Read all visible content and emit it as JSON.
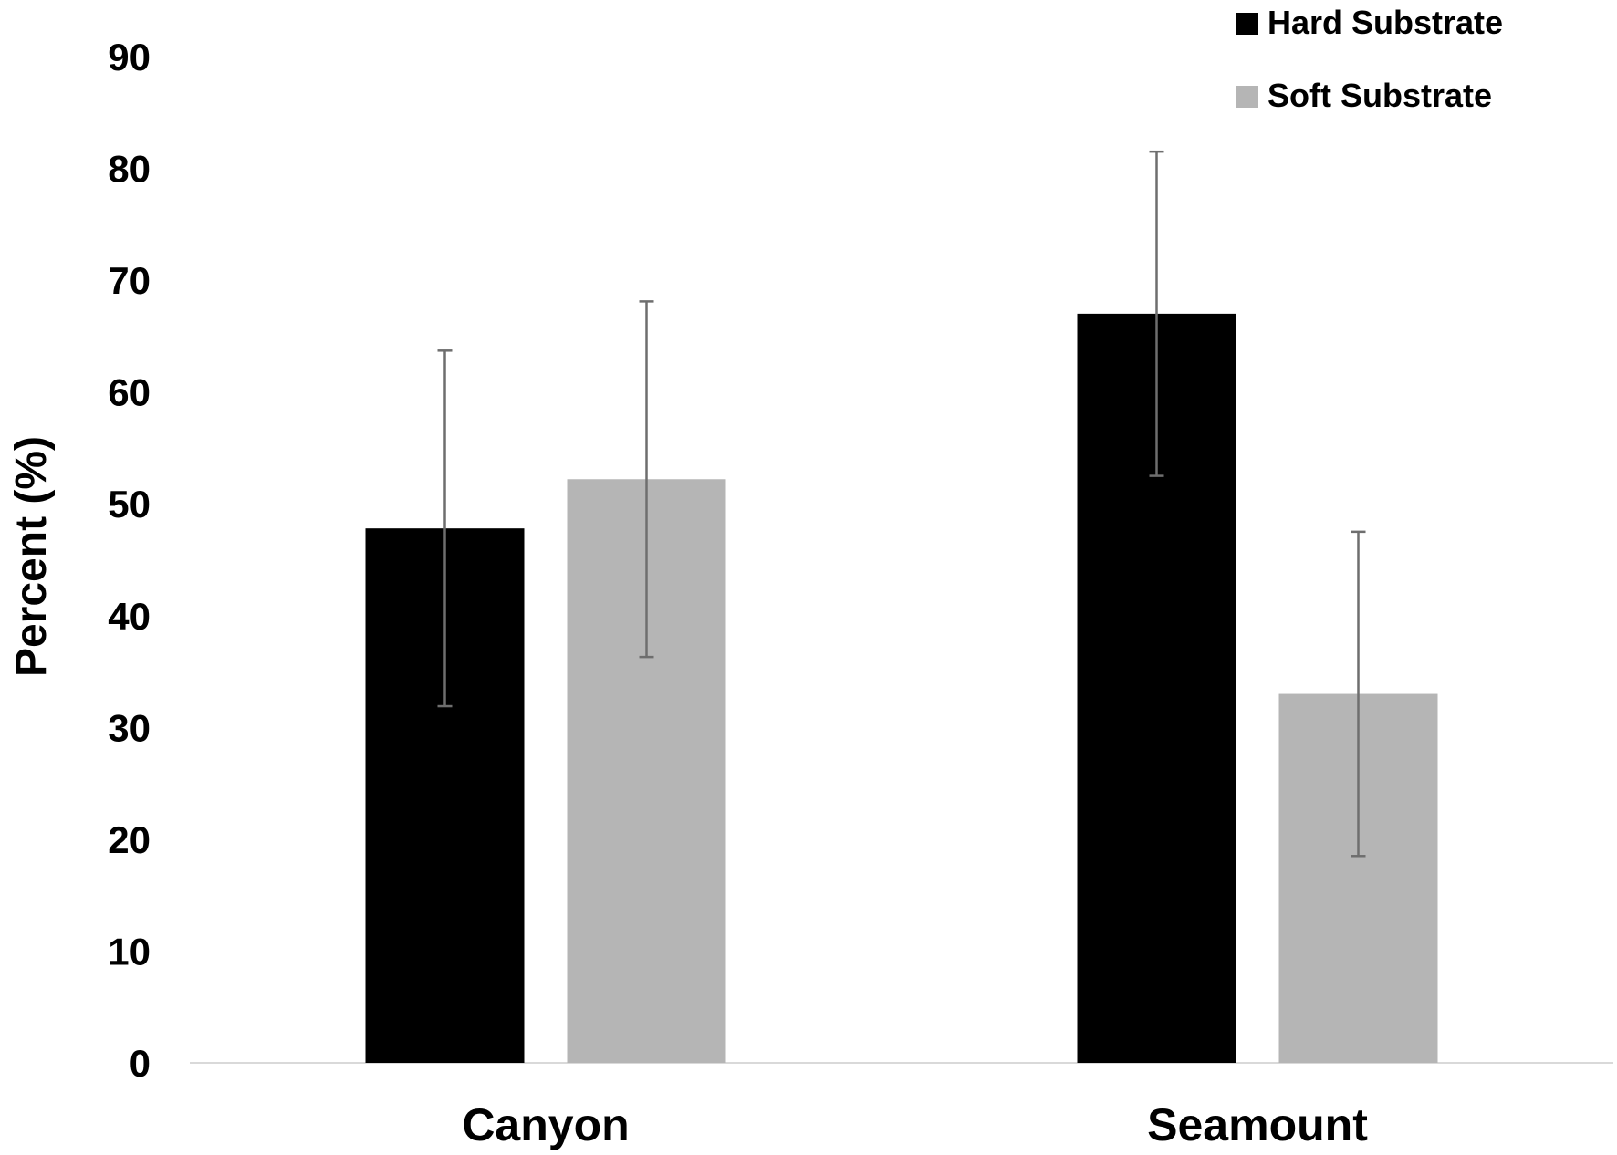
{
  "chart_data": {
    "type": "bar",
    "title": "",
    "xlabel": "",
    "ylabel": "Percent (%)",
    "ylim": [
      0,
      90
    ],
    "yticks": [
      0,
      10,
      20,
      30,
      40,
      50,
      60,
      70,
      80,
      90
    ],
    "grid": false,
    "legend_position": "top-right",
    "categories": [
      "Canyon",
      "Seamount"
    ],
    "series": [
      {
        "name": "Hard Substrate",
        "color": "#000000",
        "values": [
          47.8,
          67.0
        ],
        "error_low": [
          31.9,
          52.5
        ],
        "error_high": [
          63.7,
          81.5
        ]
      },
      {
        "name": "Soft Substrate",
        "color": "#b5b5b5",
        "values": [
          52.2,
          33.0
        ],
        "error_low": [
          36.3,
          18.5
        ],
        "error_high": [
          68.1,
          47.5
        ]
      }
    ]
  }
}
